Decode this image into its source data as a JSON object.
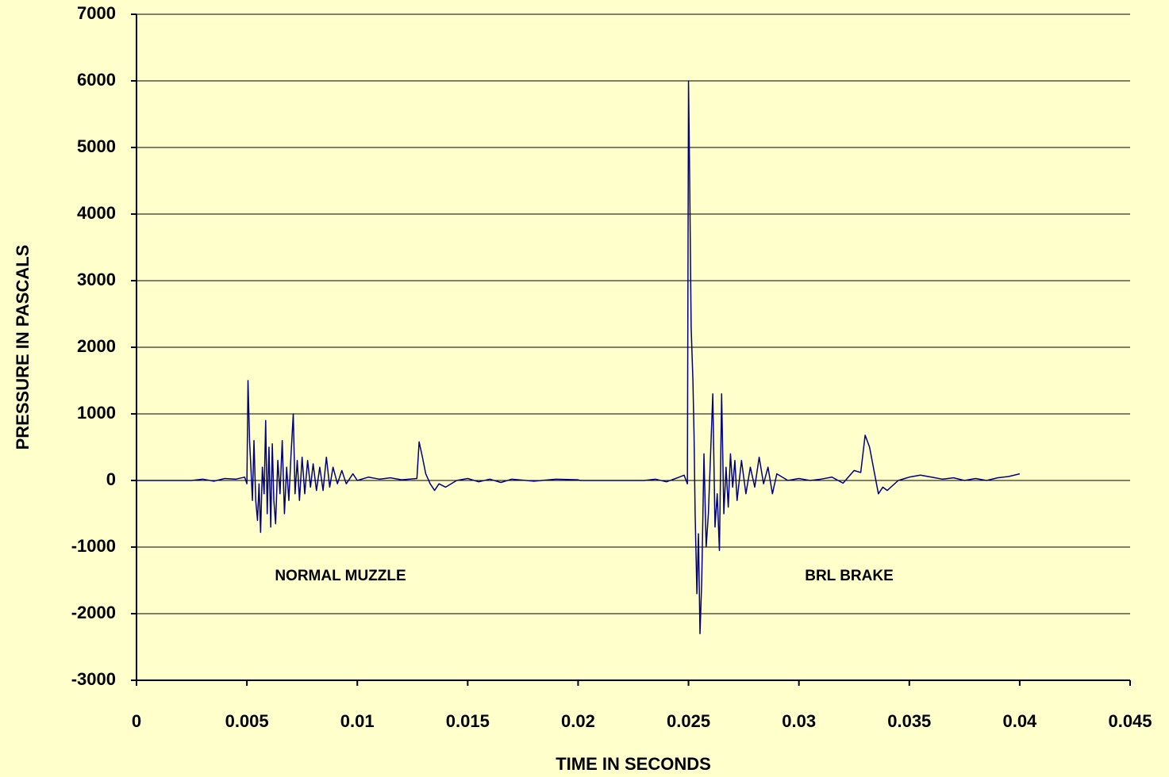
{
  "chart_data": {
    "type": "line",
    "x_label": "TIME IN SECONDS",
    "y_label": "PRESSURE IN PASCALS",
    "annotations": [
      "NORMAL MUZZLE",
      "BRL BRAKE"
    ],
    "xlim": [
      0,
      0.045
    ],
    "xticks": [
      0,
      0.005,
      0.01,
      0.015,
      0.02,
      0.025,
      0.03,
      0.035,
      0.04,
      0.045
    ],
    "ylim": [
      -3000,
      7000
    ],
    "yticks": [
      -3000,
      -2000,
      -1000,
      0,
      1000,
      2000,
      3000,
      4000,
      5000,
      6000,
      7000
    ],
    "grid": true,
    "series": [
      {
        "color": "#000080",
        "x": [
          0,
          0.0025,
          0.003,
          0.0035,
          0.004,
          0.0045,
          0.0049,
          0.005,
          0.00505,
          0.00512,
          0.00518,
          0.00525,
          0.00532,
          0.0054,
          0.00548,
          0.00555,
          0.00562,
          0.0057,
          0.00578,
          0.00585,
          0.00592,
          0.006,
          0.00608,
          0.00615,
          0.00622,
          0.0063,
          0.0064,
          0.0065,
          0.0066,
          0.0067,
          0.0068,
          0.0069,
          0.007,
          0.0071,
          0.00718,
          0.00728,
          0.00738,
          0.0075,
          0.00762,
          0.00775,
          0.00788,
          0.008,
          0.00815,
          0.0083,
          0.00845,
          0.0086,
          0.00875,
          0.0089,
          0.0091,
          0.0093,
          0.0095,
          0.0098,
          0.01,
          0.0105,
          0.011,
          0.0115,
          0.012,
          0.0127,
          0.0128,
          0.01295,
          0.0131,
          0.0133,
          0.0135,
          0.0137,
          0.014,
          0.0145,
          0.015,
          0.0155,
          0.016,
          0.0165,
          0.017,
          0.018,
          0.019,
          0.02,
          0.0201,
          0.023,
          0.0235,
          0.024,
          0.0245,
          0.0248,
          0.02495,
          0.025,
          0.02505,
          0.02512,
          0.0252,
          0.02525,
          0.0253,
          0.02538,
          0.02545,
          0.02552,
          0.0256,
          0.0257,
          0.0258,
          0.0259,
          0.026,
          0.0261,
          0.0262,
          0.0263,
          0.0264,
          0.0265,
          0.0266,
          0.0267,
          0.0268,
          0.0269,
          0.027,
          0.0271,
          0.0272,
          0.0274,
          0.0276,
          0.0278,
          0.028,
          0.0282,
          0.0284,
          0.0286,
          0.0288,
          0.029,
          0.0295,
          0.03,
          0.0305,
          0.031,
          0.0315,
          0.032,
          0.0325,
          0.0328,
          0.033,
          0.0332,
          0.0334,
          0.0336,
          0.0338,
          0.034,
          0.0345,
          0.035,
          0.0355,
          0.036,
          0.0365,
          0.037,
          0.0375,
          0.038,
          0.0385,
          0.039,
          0.0395,
          0.04
        ],
        "values": [
          0,
          0,
          20,
          -10,
          30,
          20,
          50,
          -50,
          1500,
          600,
          200,
          -300,
          600,
          -300,
          -600,
          -50,
          -780,
          200,
          -200,
          900,
          -500,
          500,
          -700,
          550,
          -300,
          -650,
          300,
          -200,
          600,
          -500,
          200,
          -300,
          400,
          1000,
          -200,
          300,
          -300,
          350,
          -200,
          300,
          -100,
          250,
          -150,
          200,
          -150,
          350,
          -100,
          200,
          -50,
          150,
          -50,
          100,
          0,
          50,
          20,
          40,
          10,
          30,
          580,
          350,
          100,
          -50,
          -150,
          -50,
          -100,
          0,
          30,
          -20,
          20,
          -30,
          20,
          -10,
          20,
          10,
          0,
          0,
          20,
          -20,
          40,
          80,
          -50,
          6000,
          4600,
          2300,
          1500,
          700,
          -500,
          -1700,
          -800,
          -2300,
          -1500,
          400,
          -1000,
          -500,
          400,
          1300,
          -700,
          -200,
          -1050,
          1300,
          -500,
          200,
          -400,
          400,
          -100,
          300,
          -300,
          300,
          -200,
          200,
          -100,
          350,
          -50,
          200,
          -200,
          100,
          0,
          30,
          0,
          20,
          50,
          -40,
          150,
          120,
          680,
          500,
          150,
          -200,
          -100,
          -150,
          0,
          50,
          80,
          50,
          20,
          40,
          0,
          30,
          0,
          40,
          60,
          100
        ]
      }
    ]
  }
}
